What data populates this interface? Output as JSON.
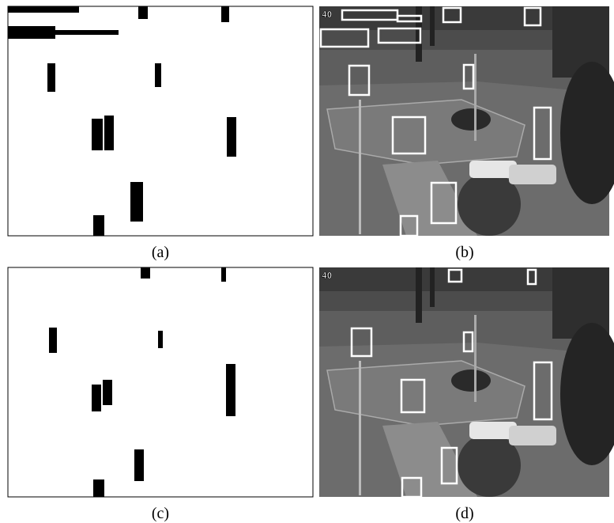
{
  "panels": [
    {
      "caption": "(a)"
    },
    {
      "caption": "(b)",
      "frame_label": "40"
    },
    {
      "caption": "(c)"
    },
    {
      "caption": "(d)",
      "frame_label": "40"
    }
  ]
}
